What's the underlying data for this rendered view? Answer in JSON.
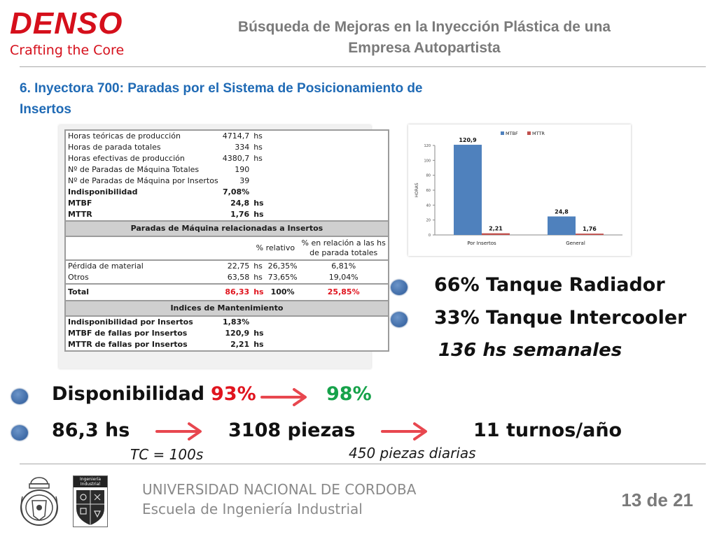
{
  "header": {
    "logo": "DENSO",
    "logo_tagline": "Crafting the Core",
    "title_line1": "Búsqueda de Mejoras en la Inyección Plástica de una",
    "title_line2": "Empresa Autopartista"
  },
  "section": {
    "title_line1": "6. Inyectora 700: Paradas por el Sistema de Posicionamiento de",
    "title_line2": "Insertos"
  },
  "table": {
    "rows_top": [
      {
        "label": "Horas teóricas de producción",
        "value": "4714,7",
        "unit": "hs"
      },
      {
        "label": "Horas de parada totales",
        "value": "334",
        "unit": "hs"
      },
      {
        "label": "Horas efectivas de producción",
        "value": "4380,7",
        "unit": "hs"
      },
      {
        "label": "Nº de Paradas de Máquina Totales",
        "value": "190",
        "unit": ""
      },
      {
        "label": "Nº de Paradas de Máquina por Insertos",
        "value": "39",
        "unit": ""
      }
    ],
    "rows_kpi": [
      {
        "label": "Indisponibilidad",
        "value": "7,08%",
        "unit": ""
      },
      {
        "label": "MTBF",
        "value": "24,8",
        "unit": "hs"
      },
      {
        "label": "MTTR",
        "value": "1,76",
        "unit": "hs"
      }
    ],
    "band1": "Paradas de Máquina relacionadas a Insertos",
    "col_rel": "% relativo",
    "col_paradas_1": "% en relación a las hs",
    "col_paradas_2": "de parada totales",
    "rows_paradas": [
      {
        "label": "Pérdida de material",
        "hs": "22,75",
        "unit": "hs",
        "rel": "26,35%",
        "tot": "6,81%"
      },
      {
        "label": "Otros",
        "hs": "63,58",
        "unit": "hs",
        "rel": "73,65%",
        "tot": "19,04%"
      }
    ],
    "total": {
      "label": "Total",
      "hs": "86,33",
      "unit": "hs",
      "rel": "100%",
      "tot": "25,85%"
    },
    "band2": "Indices de Mantenimiento",
    "rows_mant": [
      {
        "label": "Indisponibilidad por Insertos",
        "value": "1,83%",
        "unit": ""
      },
      {
        "label": "MTBF de fallas por Insertos",
        "value": "120,9",
        "unit": "hs"
      },
      {
        "label": "MTTR de fallas por Insertos",
        "value": "2,21",
        "unit": "hs"
      }
    ]
  },
  "chart_data": {
    "type": "bar",
    "categories": [
      "Por Insertos",
      "General"
    ],
    "series": [
      {
        "name": "MTBF",
        "values": [
          120.9,
          24.8
        ],
        "labels": [
          "120,9",
          "24,8"
        ],
        "color": "#4f81bd"
      },
      {
        "name": "MTTR",
        "values": [
          2.21,
          1.76
        ],
        "labels": [
          "2,21",
          "1,76"
        ],
        "color": "#c0504d"
      }
    ],
    "ylabel": "HORAS",
    "ylim": [
      0,
      120
    ],
    "yticks": [
      0,
      20,
      40,
      60,
      80,
      100,
      120
    ],
    "grid": false,
    "legend": "top"
  },
  "bullets": {
    "radiador": "66% Tanque Radiador",
    "intercooler": "33% Tanque Intercooler",
    "semanales": "136 hs semanales",
    "disp_label": "Disponibilidad",
    "disp_from": "93%",
    "disp_to": "98%",
    "hs": "86,3 hs",
    "piezas": "3108 piezas",
    "turnos": "11 turnos/año",
    "tc": "TC = 100s",
    "diarias": "450 piezas diarias"
  },
  "colors": {
    "accent_red": "#e0141e",
    "accent_green": "#16a24a",
    "arrow_red": "#e8474f",
    "brand_red": "#d50f1b",
    "title_blue": "#1f6ab5"
  },
  "footer": {
    "university": "UNIVERSIDAD NACIONAL DE CORDOBA",
    "school": "Escuela de Ingeniería Industrial",
    "page": "13 de 21",
    "seal_icon": "university-seal-icon",
    "shield_icon": "engineering-shield-icon",
    "shield_text_1": "Ingeniería",
    "shield_text_2": "Industrial"
  }
}
